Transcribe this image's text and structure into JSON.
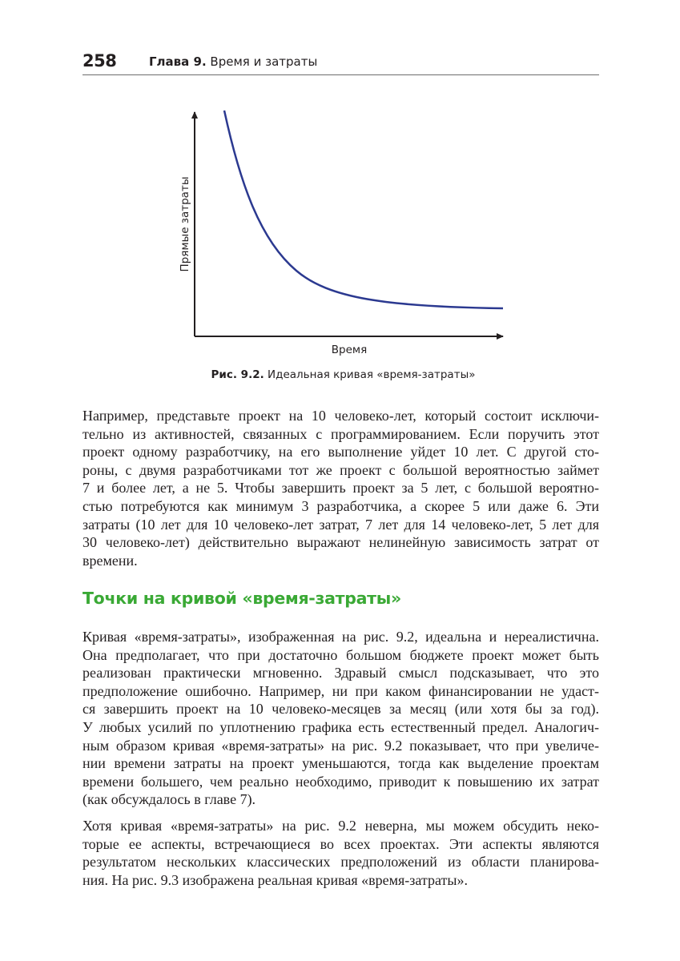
{
  "header": {
    "page_number": "258",
    "chapter_label": "Глава 9.",
    "chapter_title": "Время и затраты"
  },
  "figure": {
    "y_axis_label": "Прямые затраты",
    "x_axis_label": "Время",
    "caption_label": "Рис. 9.2.",
    "caption_text": "Идеальная кривая «время-затраты»",
    "curve_color": "#2b3990"
  },
  "paragraph1": [
    "Например, представьте проект на 10 человеко-лет, который состоит исключи-",
    "тельно из активностей, связанных с программированием. Если поручить этот",
    "проект одному разработчику, на его выполнение уйдет 10 лет. С другой сто-",
    "роны, с двумя разработчиками тот же проект с большой вероятностью займет",
    "7 и более лет, а не 5. Чтобы завершить проект за 5 лет, с большой вероятно-",
    "стью потребуются как минимум 3 разработчика, а скорее 5 или даже 6. Эти",
    "затраты (10 лет для 10 человеко-лет затрат, 7 лет для 14 человеко-лет, 5 лет для",
    "30 человеко-лет) действительно выражают нелинейную зависимость затрат от",
    "времени."
  ],
  "section_heading": "Точки на кривой «время-затраты»",
  "heading_color": "#3aa935",
  "paragraph2": [
    "Кривая «время-затраты», изображенная на рис. 9.2, идеальна и нереалистична.",
    "Она предполагает, что при достаточно большом бюджете проект может быть",
    "реализован практически мгновенно. Здравый смысл подсказывает, что это",
    "предположение ошибочно. Например, ни при каком финансировании не удаст-",
    "ся завершить проект на 10 человеко-месяцев за месяц (или хотя бы за год).",
    "У любых усилий по уплотнению графика есть естественный предел. Аналогич-",
    "ным образом кривая «время-затраты» на рис. 9.2 показывает, что при увеличе-",
    "нии времени затраты на проект уменьшаются, тогда как выделение проектам",
    "времени большего, чем реально необходимо, приводит к повышению их затрат",
    "(как обсуждалось в главе 7)."
  ],
  "paragraph3": [
    "Хотя кривая «время-затраты» на рис. 9.2 неверна, мы можем обсудить неко-",
    "торые ее аспекты, встречающиеся во всех проектах. Эти аспекты являются",
    "результатом нескольких классических предположений из области планирова-",
    "ния. На рис. 9.3 изображена реальная кривая «время-затраты»."
  ]
}
